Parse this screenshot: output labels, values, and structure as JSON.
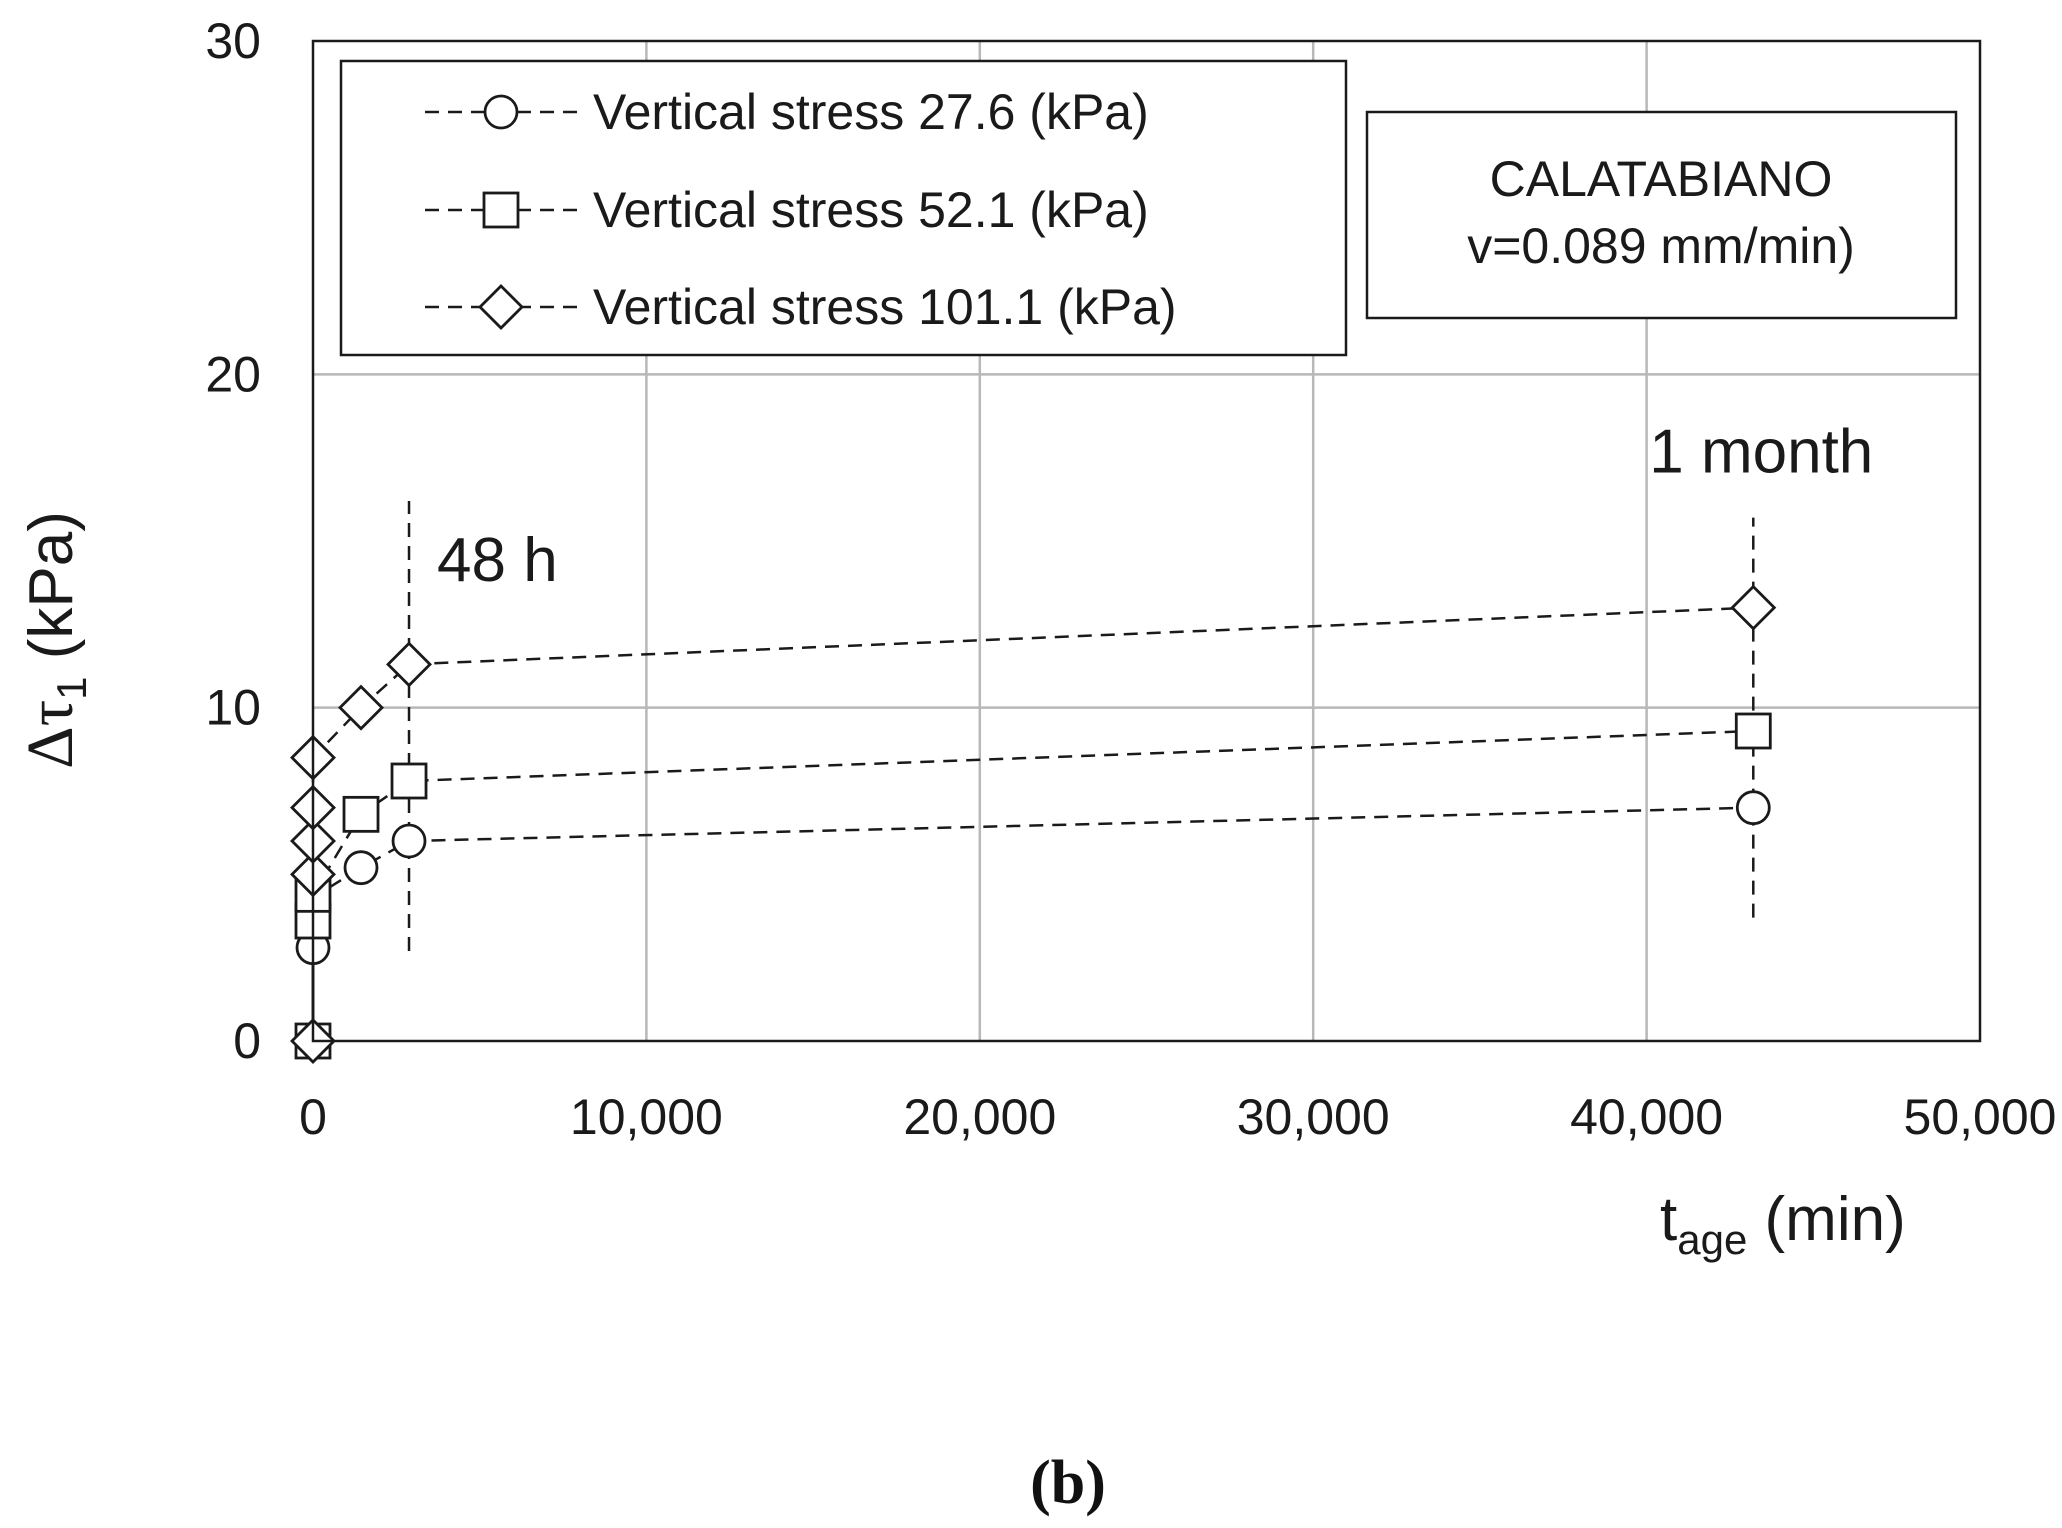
{
  "panel_label": "(b)",
  "chart_data": {
    "type": "scatter",
    "title": "",
    "xlabel": {
      "main": "t",
      "sub": "age",
      "tail": " (min)"
    },
    "ylabel": {
      "prefix": "Δτ",
      "sub": "1",
      "tail": "  (kPa)"
    },
    "xlim": [
      0,
      50000
    ],
    "ylim": [
      0,
      30
    ],
    "x_ticks": [
      0,
      10000,
      20000,
      30000,
      40000,
      50000
    ],
    "x_tick_labels": [
      "0",
      "10,000",
      "20,000",
      "30,000",
      "40,000",
      "50,000"
    ],
    "y_ticks": [
      0,
      10,
      20,
      30
    ],
    "y_tick_labels": [
      "0",
      "10",
      "20",
      "30"
    ],
    "grid": true,
    "legend_position": "top-left",
    "series": [
      {
        "name": "Vertical stress 27.6 (kPa)",
        "marker": "circle",
        "line": "dashed",
        "x": [
          0,
          0,
          0,
          1440,
          2880,
          43200
        ],
        "y": [
          0,
          2.8,
          4.3,
          5.2,
          6.0,
          7.0
        ]
      },
      {
        "name": "Vertical stress 52.1 (kPa)",
        "marker": "square",
        "line": "dashed",
        "x": [
          0,
          0,
          0,
          1440,
          2880,
          43200
        ],
        "y": [
          0,
          3.6,
          4.4,
          6.8,
          7.8,
          9.3
        ]
      },
      {
        "name": "Vertical stress 101.1 (kPa)",
        "marker": "diamond",
        "line": "dashed",
        "x": [
          0,
          0,
          0,
          0,
          0,
          1440,
          2880,
          43200
        ],
        "y": [
          0,
          5.0,
          6.0,
          7.0,
          8.5,
          10.0,
          11.3,
          13.0
        ]
      }
    ],
    "annotations": [
      {
        "text": "48 h",
        "x": 2880,
        "y_from": 2.7,
        "y_to": 16.2
      },
      {
        "text": "1 month",
        "x": 43200,
        "y_from": 3.7,
        "y_to": 15.7
      }
    ],
    "info_box": {
      "line1": "CALATABIANO",
      "line2": "v=0.089 mm/min)"
    }
  }
}
